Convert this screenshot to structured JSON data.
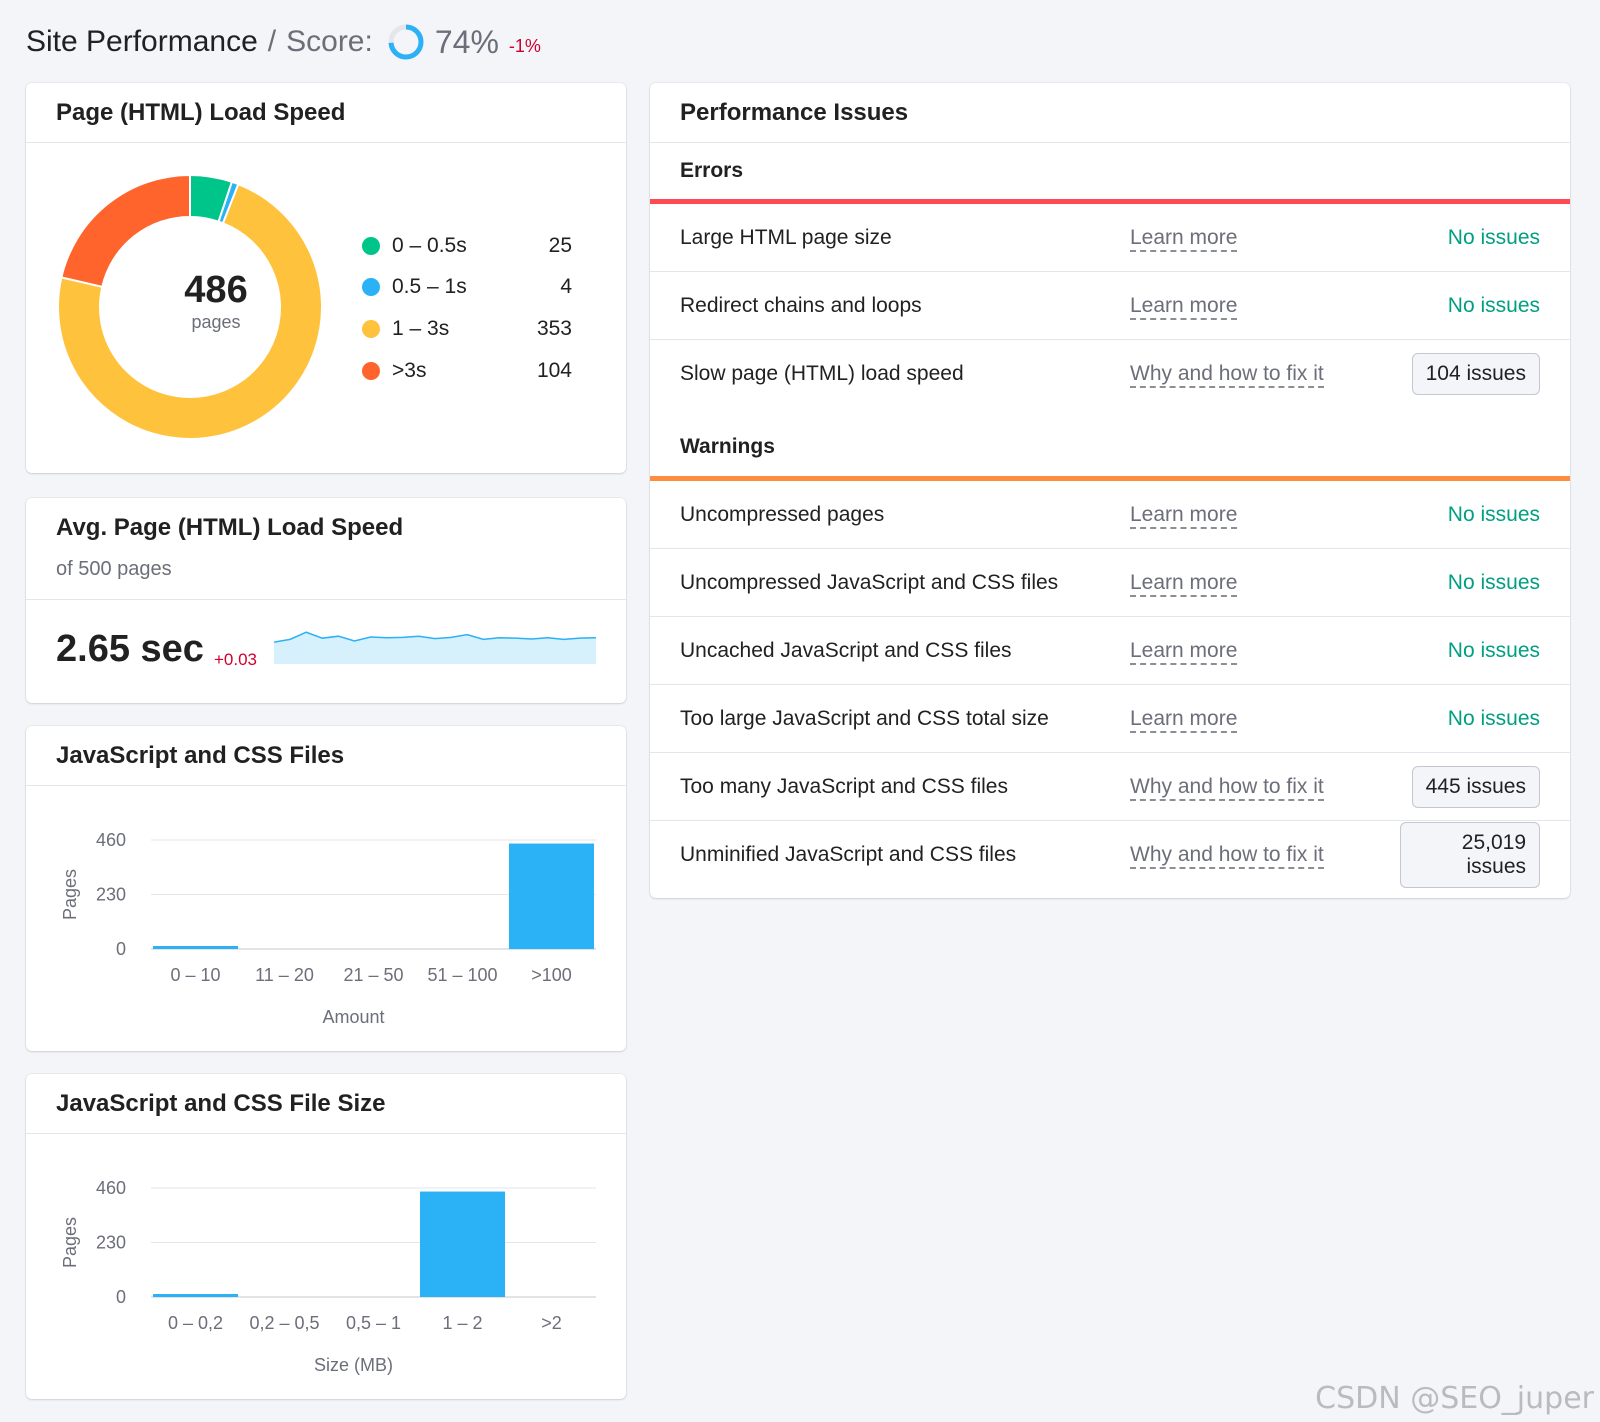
{
  "header": {
    "title": "Site Performance",
    "separator": "/",
    "score_label": "Score:",
    "score_value": "74%",
    "score_fraction": 0.74,
    "score_delta": "-1%"
  },
  "load_speed": {
    "title": "Page (HTML) Load Speed",
    "total": "486",
    "total_unit": "pages",
    "buckets": [
      {
        "label": "0 – 0.5s",
        "count": "25",
        "value": 25,
        "color": "#00c58a"
      },
      {
        "label": "0.5 – 1s",
        "count": "4",
        "value": 4,
        "color": "#2bb1f5"
      },
      {
        "label": "1 – 3s",
        "count": "353",
        "value": 353,
        "color": "#ffc23d"
      },
      {
        "label": ">3s",
        "count": "104",
        "value": 104,
        "color": "#ff642d"
      }
    ]
  },
  "avg_speed": {
    "title": "Avg. Page (HTML) Load Speed",
    "subtitle": "of 500 pages",
    "value": "2.65 sec",
    "delta": "+0.03",
    "trend": [
      0.35,
      0.42,
      0.6,
      0.45,
      0.5,
      0.38,
      0.48,
      0.46,
      0.47,
      0.5,
      0.44,
      0.47,
      0.54,
      0.42,
      0.46,
      0.45,
      0.43,
      0.46,
      0.42,
      0.45,
      0.46
    ]
  },
  "js_css_files": {
    "title": "JavaScript and CSS Files",
    "chart_data": {
      "type": "bar",
      "categories": [
        "0 – 10",
        "11 – 20",
        "21 – 50",
        "51 – 100",
        ">100"
      ],
      "values": [
        4,
        0,
        0,
        0,
        445
      ],
      "yticks": [
        "460",
        "230",
        "0"
      ],
      "ylim": [
        0,
        460
      ],
      "xlabel": "Amount",
      "ylabel": "Pages",
      "color": "#2bb1f5"
    }
  },
  "js_css_size": {
    "title": "JavaScript and CSS File Size",
    "chart_data": {
      "type": "bar",
      "categories": [
        "0 – 0,2",
        "0,2 – 0,5",
        "0,5 – 1",
        "1 – 2",
        ">2"
      ],
      "values": [
        4,
        0,
        0,
        445,
        0
      ],
      "yticks": [
        "460",
        "230",
        "0"
      ],
      "ylim": [
        0,
        460
      ],
      "xlabel": "Size (MB)",
      "ylabel": "Pages",
      "color": "#2bb1f5"
    }
  },
  "issues": {
    "title": "Performance Issues",
    "errors": {
      "title": "Errors",
      "color": "#ff4953",
      "rows": [
        {
          "name": "Large HTML page size",
          "link": "Learn more",
          "status": "No issues",
          "has_issues": false
        },
        {
          "name": "Redirect chains and loops",
          "link": "Learn more",
          "status": "No issues",
          "has_issues": false
        },
        {
          "name": "Slow page (HTML) load speed",
          "link": "Why and how to fix it",
          "status": "104 issues",
          "has_issues": true
        }
      ]
    },
    "warnings": {
      "title": "Warnings",
      "color": "#ff8c43",
      "rows": [
        {
          "name": "Uncompressed pages",
          "link": "Learn more",
          "status": "No issues",
          "has_issues": false
        },
        {
          "name": "Uncompressed JavaScript and CSS files",
          "link": "Learn more",
          "status": "No issues",
          "has_issues": false
        },
        {
          "name": "Uncached JavaScript and CSS files",
          "link": "Learn more",
          "status": "No issues",
          "has_issues": false
        },
        {
          "name": "Too large JavaScript and CSS total size",
          "link": "Learn more",
          "status": "No issues",
          "has_issues": false
        },
        {
          "name": "Too many JavaScript and CSS files",
          "link": "Why and how to fix it",
          "status": "445 issues",
          "has_issues": true
        },
        {
          "name": "Unminified JavaScript and CSS files",
          "link": "Why and how to fix it",
          "status": "25,019 issues",
          "has_issues": true
        }
      ]
    }
  },
  "watermark": "CSDN @SEO_juper"
}
